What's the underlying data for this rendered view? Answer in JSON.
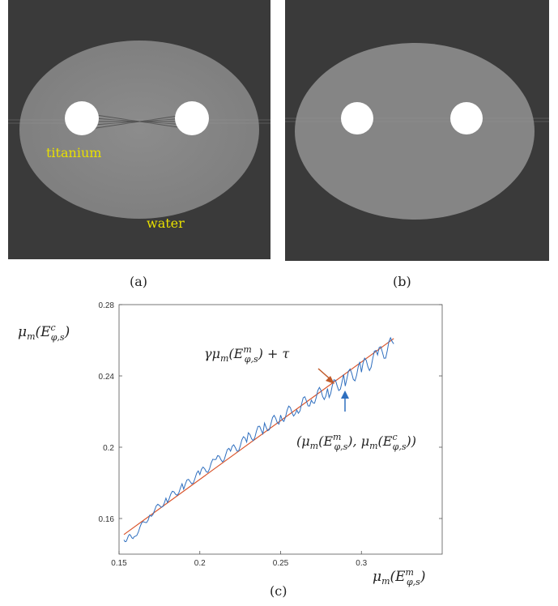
{
  "figure": {
    "panel_a": {
      "caption": "(a)",
      "label_titanium": "titanium",
      "label_water": "water"
    },
    "panel_b": {
      "caption": "(b)"
    },
    "panel_c": {
      "caption": "(c)"
    }
  },
  "chart_data": {
    "type": "line",
    "ylabel": "μm(E^c_{φ,s})",
    "xlabel": "μm(E^m_{φ,s})",
    "xlim": [
      0.15,
      0.35
    ],
    "ylim": [
      0.14,
      0.28
    ],
    "x_ticks": [
      "0.15",
      "0.2",
      "0.25",
      "0.3"
    ],
    "y_ticks": [
      "0.16",
      "0.2",
      "0.24",
      "0.28"
    ],
    "annotations": [
      "γμm(E^m_{φ,s}) + τ",
      "(μm(E^m_{φ,s}), μm(E^c_{φ,s}))"
    ],
    "series": [
      {
        "color": "#d9542b",
        "x": [
          0.153,
          0.32
        ],
        "y": [
          0.151,
          0.261
        ]
      },
      {
        "color": "#2f6fbf",
        "x": [
          0.153,
          0.16,
          0.17,
          0.18,
          0.19,
          0.2,
          0.21,
          0.22,
          0.23,
          0.24,
          0.25,
          0.26,
          0.27,
          0.28,
          0.29,
          0.3,
          0.31,
          0.32
        ],
        "y": [
          0.148,
          0.151,
          0.163,
          0.171,
          0.178,
          0.185,
          0.192,
          0.198,
          0.205,
          0.211,
          0.217,
          0.222,
          0.228,
          0.232,
          0.238,
          0.244,
          0.251,
          0.258
        ]
      }
    ]
  }
}
